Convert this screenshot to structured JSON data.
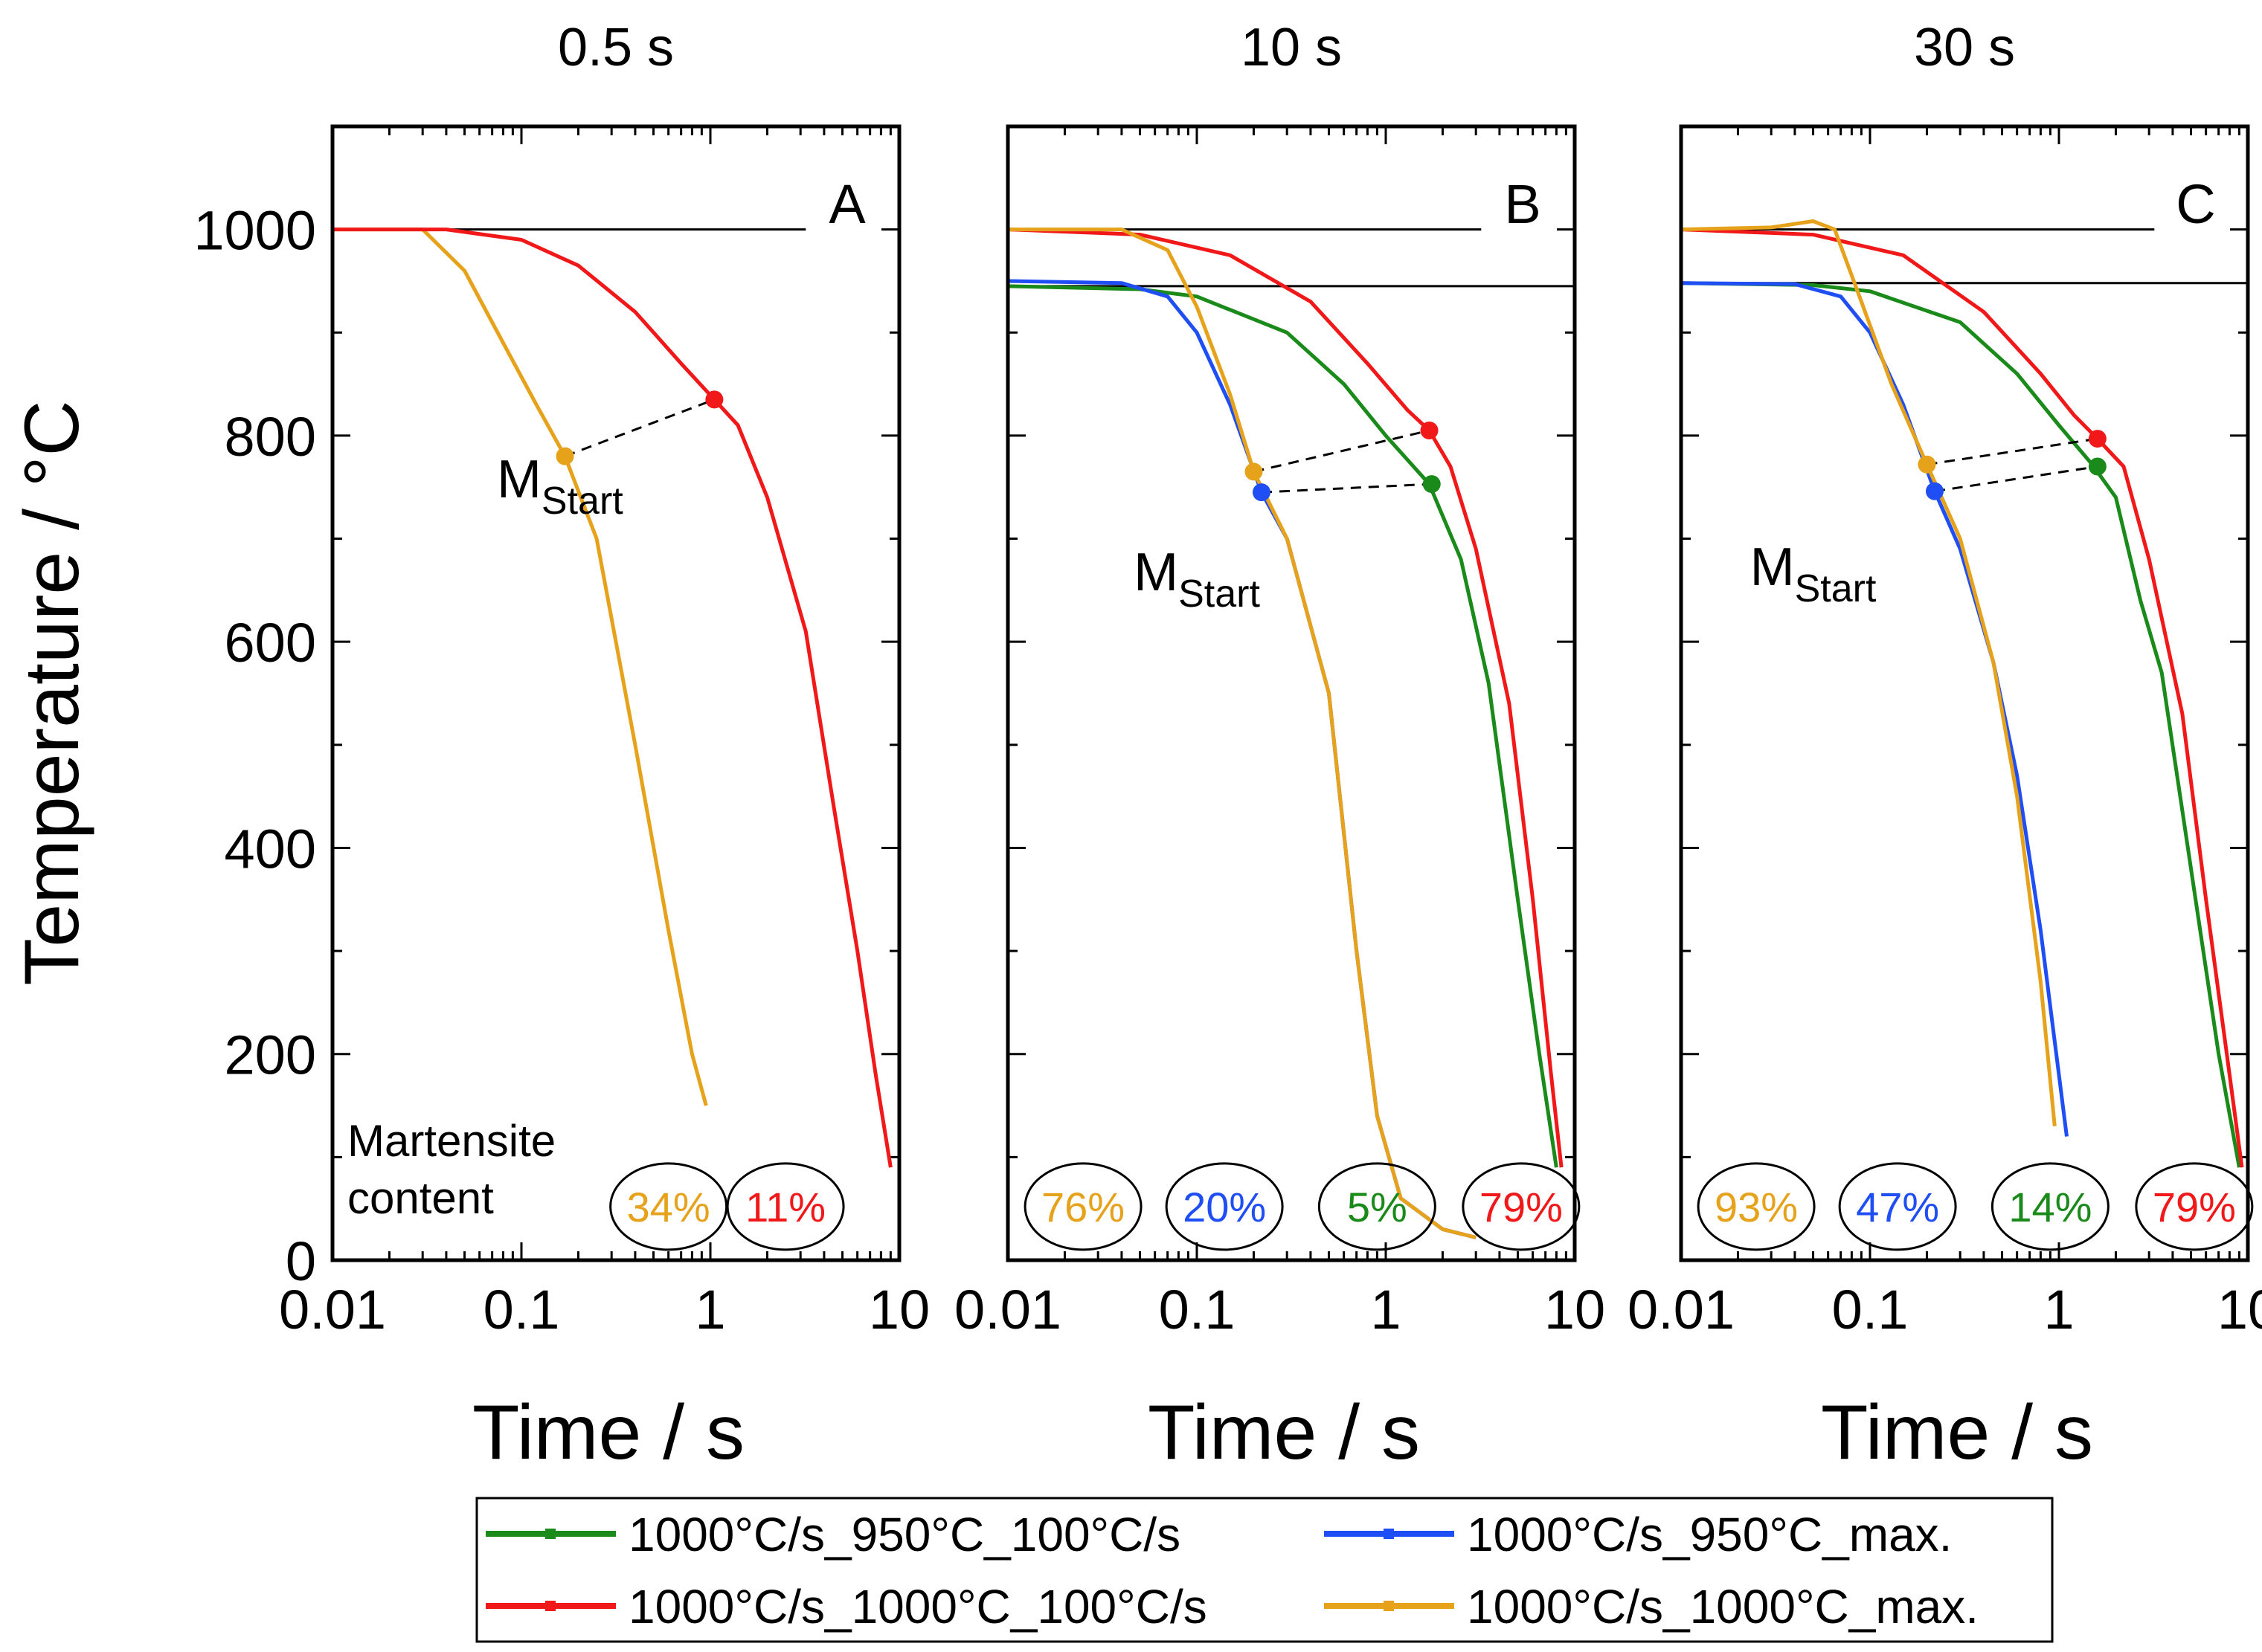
{
  "chart_data": {
    "type": "line",
    "xscale": "log",
    "xlim": [
      0.01,
      10
    ],
    "ylim": [
      0,
      1100
    ],
    "xlabel": "Time / s",
    "ylabel": "Temperature / °C",
    "xticks": [
      "0.01",
      "0.1",
      "1",
      "10"
    ],
    "yticks": [
      0,
      200,
      400,
      600,
      800,
      1000
    ],
    "ms_label": "M",
    "ms_sub": "Start",
    "content_label_line1": "Martensite",
    "content_label_line2": "content",
    "legend": [
      {
        "key": "green",
        "label": "1000°C/s_950°C_100°C/s",
        "color": "#1a8a1a"
      },
      {
        "key": "blue",
        "label": "1000°C/s_950°C_max.",
        "color": "#1f4ef5"
      },
      {
        "key": "red",
        "label": "1000°C/s_1000°C_100°C/s",
        "color": "#f01818"
      },
      {
        "key": "orange",
        "label": "1000°C/s_1000°C_max.",
        "color": "#e6a21a"
      }
    ],
    "panels": [
      {
        "title": "0.5 s",
        "letter": "A",
        "hlines": [
          1000
        ],
        "series": [
          {
            "key": "orange",
            "points": [
              [
                0.01,
                1000
              ],
              [
                0.03,
                1000
              ],
              [
                0.05,
                960
              ],
              [
                0.08,
                890
              ],
              [
                0.12,
                830
              ],
              [
                0.17,
                780
              ],
              [
                0.25,
                700
              ],
              [
                0.4,
                500
              ],
              [
                0.6,
                320
              ],
              [
                0.8,
                200
              ],
              [
                0.95,
                150
              ]
            ]
          },
          {
            "key": "red",
            "points": [
              [
                0.01,
                1000
              ],
              [
                0.04,
                1000
              ],
              [
                0.1,
                990
              ],
              [
                0.2,
                965
              ],
              [
                0.4,
                920
              ],
              [
                0.7,
                870
              ],
              [
                1.05,
                835
              ],
              [
                1.4,
                810
              ],
              [
                2,
                740
              ],
              [
                3.2,
                610
              ],
              [
                4.5,
                440
              ],
              [
                6,
                300
              ],
              [
                7.5,
                180
              ],
              [
                9,
                90
              ]
            ]
          }
        ],
        "ms_points": [
          {
            "key": "orange",
            "x": 0.17,
            "y": 780
          },
          {
            "key": "red",
            "x": 1.05,
            "y": 835
          }
        ],
        "ms_links": [
          [
            0.17,
            780,
            1.05,
            835
          ]
        ],
        "ms_text_at": [
          0.16,
          740
        ],
        "percents": [
          {
            "key": "orange",
            "text": "34%",
            "x": 0.6
          },
          {
            "key": "red",
            "text": "11%",
            "x": 2.5
          }
        ],
        "show_content_label": true
      },
      {
        "title": "10 s",
        "letter": "B",
        "hlines": [
          1000,
          945
        ],
        "series": [
          {
            "key": "green",
            "points": [
              [
                0.01,
                945
              ],
              [
                0.05,
                942
              ],
              [
                0.1,
                935
              ],
              [
                0.3,
                900
              ],
              [
                0.6,
                850
              ],
              [
                1,
                800
              ],
              [
                1.7,
                753
              ],
              [
                2.5,
                680
              ],
              [
                3.5,
                560
              ],
              [
                5,
                350
              ],
              [
                6.5,
                200
              ],
              [
                8,
                90
              ]
            ]
          },
          {
            "key": "blue",
            "points": [
              [
                0.01,
                950
              ],
              [
                0.04,
                948
              ],
              [
                0.07,
                935
              ],
              [
                0.1,
                900
              ],
              [
                0.15,
                830
              ],
              [
                0.22,
                745
              ],
              [
                0.3,
                700
              ],
              [
                0.5,
                550
              ],
              [
                0.7,
                300
              ],
              [
                0.9,
                140
              ],
              [
                1.2,
                60
              ],
              [
                2,
                30
              ],
              [
                3,
                22
              ]
            ]
          },
          {
            "key": "red",
            "points": [
              [
                0.01,
                1000
              ],
              [
                0.05,
                995
              ],
              [
                0.15,
                975
              ],
              [
                0.4,
                930
              ],
              [
                0.8,
                870
              ],
              [
                1.3,
                825
              ],
              [
                1.7,
                805
              ],
              [
                2.2,
                770
              ],
              [
                3,
                690
              ],
              [
                4.5,
                540
              ],
              [
                6,
                350
              ],
              [
                7.5,
                180
              ],
              [
                8.5,
                90
              ]
            ]
          },
          {
            "key": "orange",
            "points": [
              [
                0.01,
                1000
              ],
              [
                0.04,
                1000
              ],
              [
                0.07,
                980
              ],
              [
                0.1,
                925
              ],
              [
                0.15,
                840
              ],
              [
                0.2,
                765
              ],
              [
                0.3,
                700
              ],
              [
                0.5,
                550
              ],
              [
                0.7,
                300
              ],
              [
                0.9,
                140
              ],
              [
                1.2,
                60
              ],
              [
                2,
                30
              ],
              [
                3,
                22
              ]
            ]
          }
        ],
        "ms_points": [
          {
            "key": "orange",
            "x": 0.2,
            "y": 765
          },
          {
            "key": "blue",
            "x": 0.22,
            "y": 745
          },
          {
            "key": "red",
            "x": 1.7,
            "y": 805
          },
          {
            "key": "green",
            "x": 1.75,
            "y": 753
          }
        ],
        "ms_links": [
          [
            0.2,
            765,
            1.7,
            805
          ],
          [
            0.22,
            745,
            1.75,
            753
          ]
        ],
        "ms_text_at": [
          0.1,
          650
        ],
        "percents": [
          {
            "key": "orange",
            "text": "76%",
            "x": 0.025
          },
          {
            "key": "blue",
            "text": "20%",
            "x": 0.14
          },
          {
            "key": "green",
            "text": "5%",
            "x": 0.9
          },
          {
            "key": "red",
            "text": "79%",
            "x": 5.2
          }
        ],
        "show_content_label": false
      },
      {
        "title": "30 s",
        "letter": "C",
        "hlines": [
          1000,
          948
        ],
        "series": [
          {
            "key": "green",
            "points": [
              [
                0.01,
                948
              ],
              [
                0.05,
                946
              ],
              [
                0.1,
                940
              ],
              [
                0.3,
                910
              ],
              [
                0.6,
                860
              ],
              [
                1,
                810
              ],
              [
                1.5,
                772
              ],
              [
                2,
                740
              ],
              [
                2.7,
                640
              ],
              [
                3.5,
                570
              ],
              [
                5,
                380
              ],
              [
                7,
                200
              ],
              [
                9,
                90
              ]
            ]
          },
          {
            "key": "blue",
            "points": [
              [
                0.01,
                948
              ],
              [
                0.04,
                947
              ],
              [
                0.07,
                935
              ],
              [
                0.1,
                900
              ],
              [
                0.15,
                830
              ],
              [
                0.22,
                746
              ],
              [
                0.3,
                690
              ],
              [
                0.45,
                580
              ],
              [
                0.6,
                470
              ],
              [
                0.8,
                320
              ],
              [
                1.1,
                120
              ]
            ]
          },
          {
            "key": "red",
            "points": [
              [
                0.01,
                1000
              ],
              [
                0.05,
                995
              ],
              [
                0.15,
                975
              ],
              [
                0.4,
                920
              ],
              [
                0.8,
                860
              ],
              [
                1.2,
                820
              ],
              [
                1.6,
                797
              ],
              [
                2.2,
                770
              ],
              [
                3,
                680
              ],
              [
                4.5,
                530
              ],
              [
                6,
                350
              ],
              [
                8,
                180
              ],
              [
                9.3,
                90
              ]
            ]
          },
          {
            "key": "orange",
            "points": [
              [
                0.01,
                1000
              ],
              [
                0.03,
                1002
              ],
              [
                0.05,
                1008
              ],
              [
                0.065,
                1000
              ],
              [
                0.09,
                930
              ],
              [
                0.13,
                850
              ],
              [
                0.2,
                772
              ],
              [
                0.3,
                700
              ],
              [
                0.45,
                580
              ],
              [
                0.6,
                450
              ],
              [
                0.8,
                270
              ],
              [
                0.95,
                130
              ]
            ]
          }
        ],
        "ms_points": [
          {
            "key": "orange",
            "x": 0.2,
            "y": 772
          },
          {
            "key": "blue",
            "x": 0.22,
            "y": 746
          },
          {
            "key": "red",
            "x": 1.6,
            "y": 797
          },
          {
            "key": "green",
            "x": 1.6,
            "y": 770
          }
        ],
        "ms_links": [
          [
            0.2,
            772,
            1.6,
            797
          ],
          [
            0.22,
            746,
            1.6,
            770
          ]
        ],
        "ms_text_at": [
          0.05,
          655
        ],
        "percents": [
          {
            "key": "orange",
            "text": "93%",
            "x": 0.025
          },
          {
            "key": "blue",
            "text": "47%",
            "x": 0.14
          },
          {
            "key": "green",
            "text": "14%",
            "x": 0.9
          },
          {
            "key": "red",
            "text": "79%",
            "x": 5.2
          }
        ],
        "show_content_label": false
      }
    ]
  }
}
